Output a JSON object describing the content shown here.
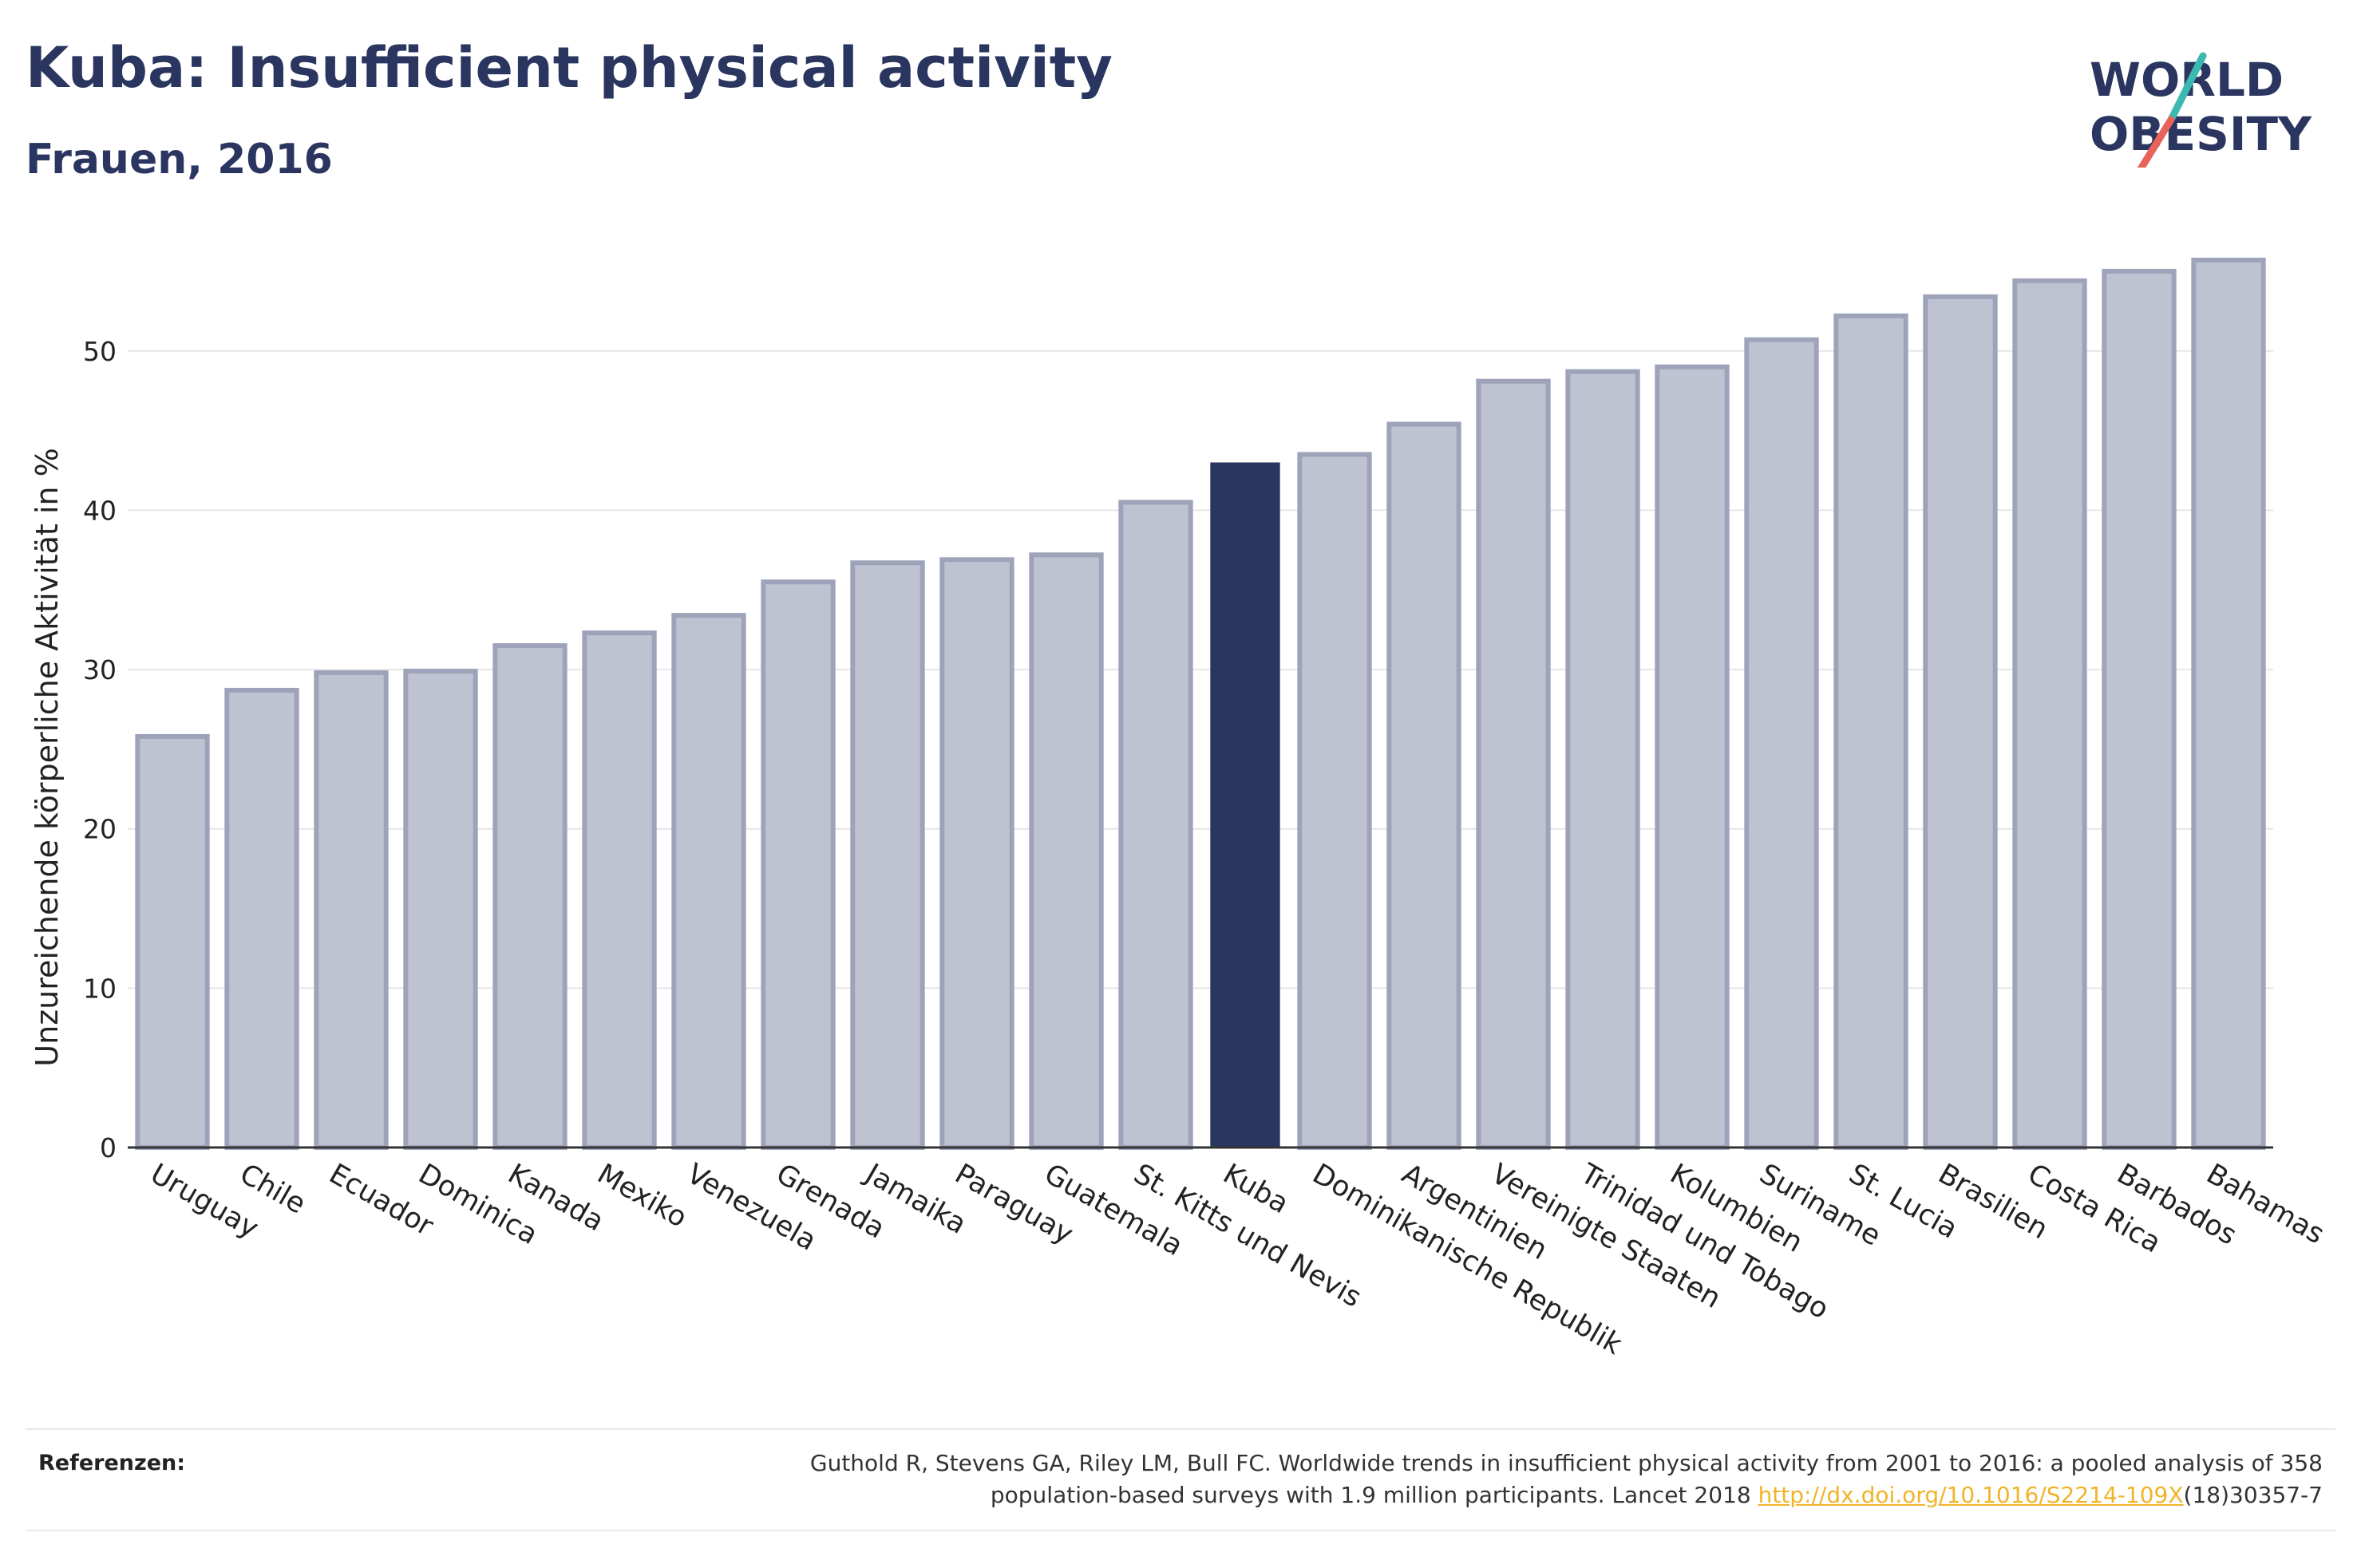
{
  "title": "Kuba: Insufficient physical activity",
  "subtitle": "Frauen, 2016",
  "logo": {
    "line1": "WORLD",
    "line2": "OBESITY"
  },
  "colors": {
    "title": "#2a3560",
    "bar": "#bfc3d1",
    "bar_outline": "#9ea3ba",
    "highlight": "#2a3560",
    "link": "#f0b429",
    "logo_teal": "#3bb9b0",
    "logo_red": "#e8645a"
  },
  "chart_data": {
    "type": "bar",
    "title": "Kuba: Insufficient physical activity",
    "subtitle": "Frauen, 2016",
    "ylabel": "Unzureichende körperliche Aktivität in %",
    "xlabel": "",
    "ylim": [
      0,
      57
    ],
    "yticks": [
      0,
      10,
      20,
      30,
      40,
      50
    ],
    "grid": true,
    "highlight": "Kuba",
    "categories": [
      "Uruguay",
      "Chile",
      "Ecuador",
      "Dominica",
      "Kanada",
      "Mexiko",
      "Venezuela",
      "Grenada",
      "Jamaika",
      "Paraguay",
      "Guatemala",
      "St. Kitts und Nevis",
      "Kuba",
      "Dominikanische Republik",
      "Argentinien",
      "Vereinigte Staaten",
      "Trinidad und Tobago",
      "Kolumbien",
      "Suriname",
      "St. Lucia",
      "Brasilien",
      "Costa Rica",
      "Barbados",
      "Bahamas"
    ],
    "values": [
      25.8,
      28.7,
      29.8,
      29.9,
      31.5,
      32.3,
      33.4,
      35.5,
      36.7,
      36.9,
      37.2,
      40.5,
      43.0,
      43.5,
      45.4,
      48.1,
      48.7,
      49.0,
      50.7,
      52.2,
      53.4,
      54.4,
      55.0,
      55.7
    ]
  },
  "footer": {
    "ref_label": "Referenzen:",
    "ref_text_1": "Guthold R, Stevens GA, Riley LM, Bull FC. Worldwide trends in insufficient physical activity from 2001 to 2016: a pooled analysis of 358",
    "ref_text_2": "population-based surveys with 1.9 million participants. Lancet 2018 ",
    "ref_link": "http://dx.doi.org/10.1016/S2214-109X",
    "ref_text_3": "(18)30357-7"
  }
}
